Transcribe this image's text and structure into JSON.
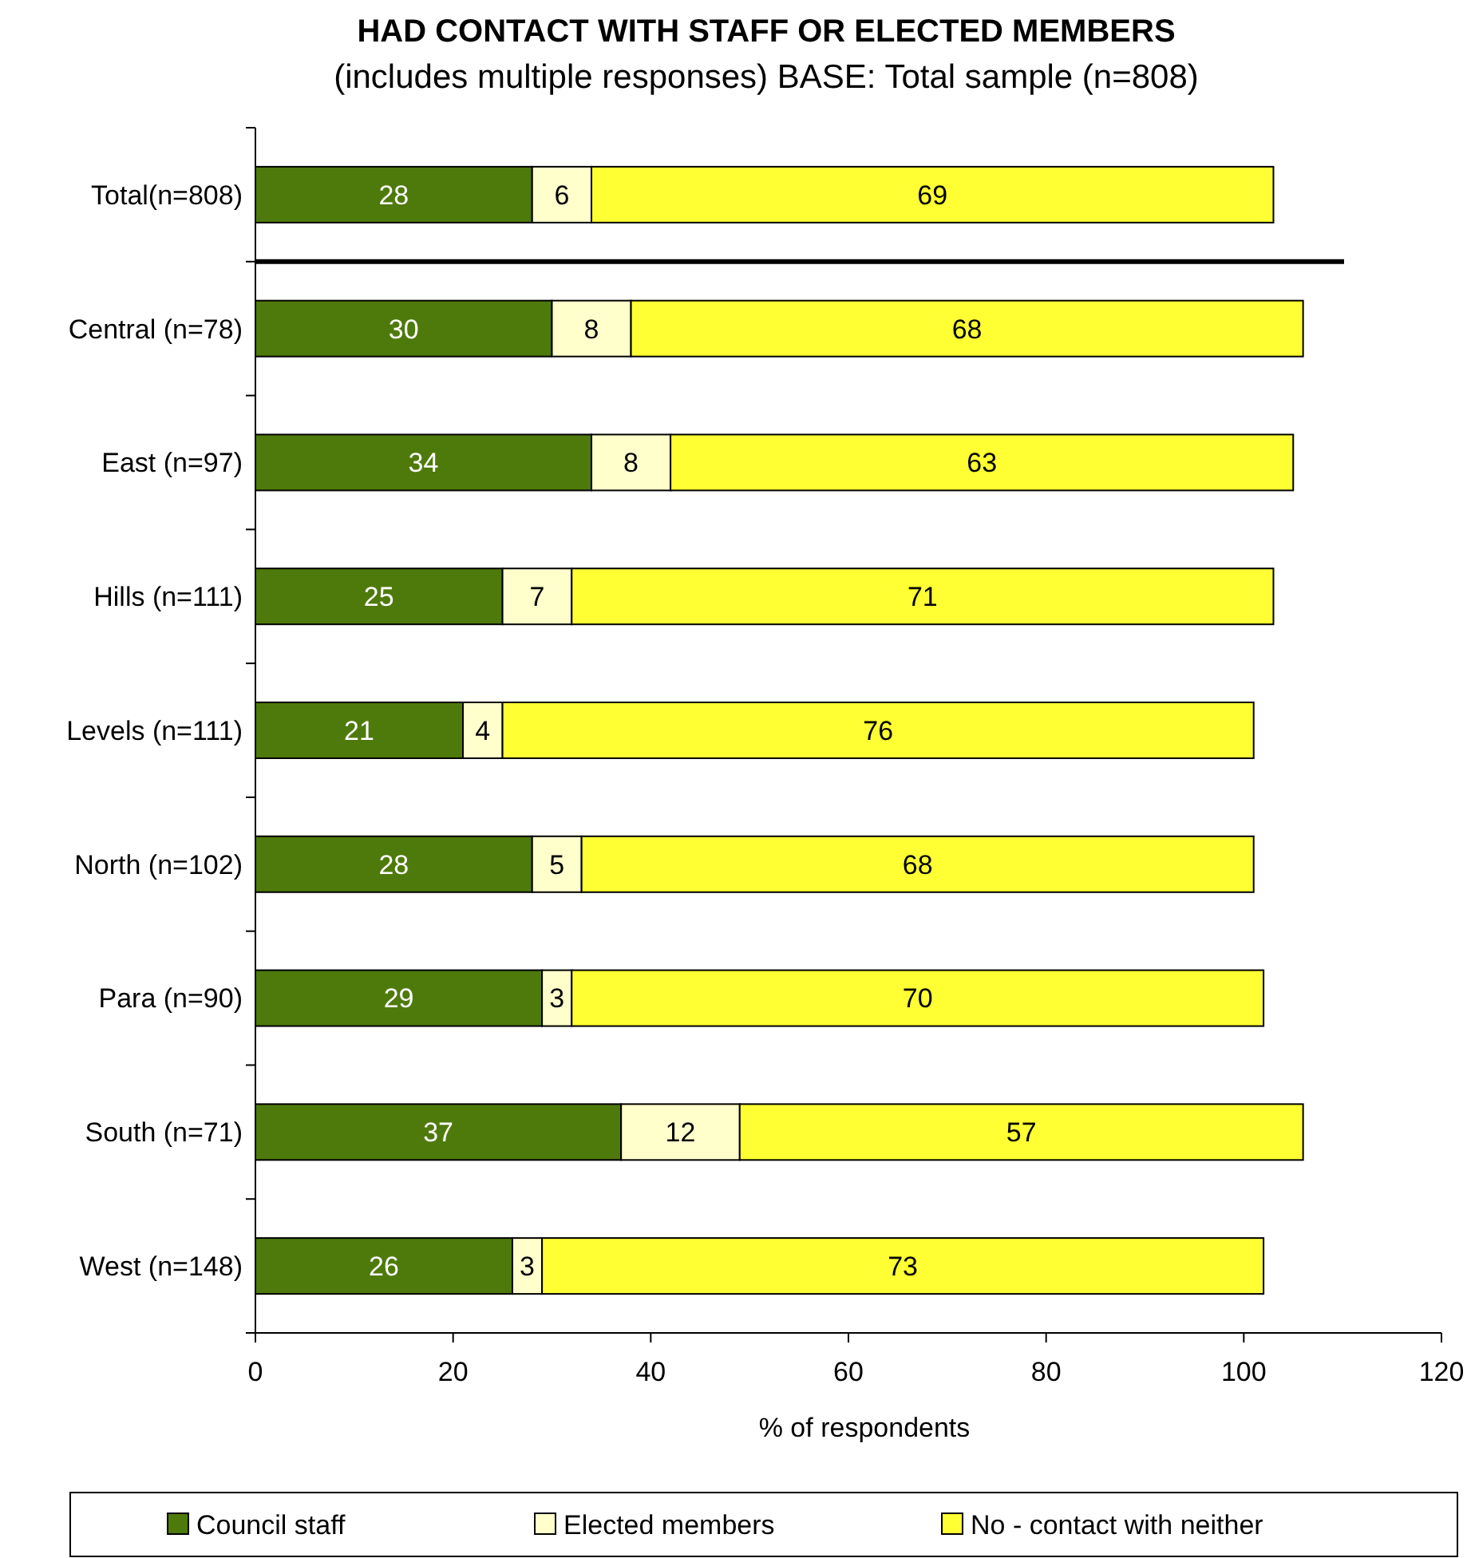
{
  "chart_data": {
    "type": "bar",
    "orientation": "horizontal",
    "stacked": true,
    "title": "HAD CONTACT WITH STAFF OR ELECTED MEMBERS",
    "subtitle": "(includes multiple responses) BASE: Total sample (n=808)",
    "xlabel": "% of respondents",
    "categories": [
      "Total(n=808)",
      "Central (n=78)",
      "East (n=97)",
      "Hills (n=111)",
      "Levels (n=111)",
      "North (n=102)",
      "Para (n=90)",
      "South (n=71)",
      "West (n=148)"
    ],
    "series": [
      {
        "name": "Council staff",
        "color": "#4e7a0c",
        "values": [
          28,
          30,
          34,
          25,
          21,
          28,
          29,
          37,
          26
        ]
      },
      {
        "name": "Elected members",
        "color": "#ffffcc",
        "values": [
          6,
          8,
          8,
          7,
          4,
          5,
          3,
          12,
          3
        ]
      },
      {
        "name": "No - contact with neither",
        "color": "#ffff33",
        "values": [
          69,
          68,
          63,
          71,
          76,
          68,
          70,
          57,
          73
        ]
      }
    ],
    "xlim": [
      0,
      120
    ],
    "xticks": [
      0,
      20,
      40,
      60,
      80,
      100,
      120
    ],
    "data_labels": true,
    "grid": false,
    "legend": "bottom"
  }
}
